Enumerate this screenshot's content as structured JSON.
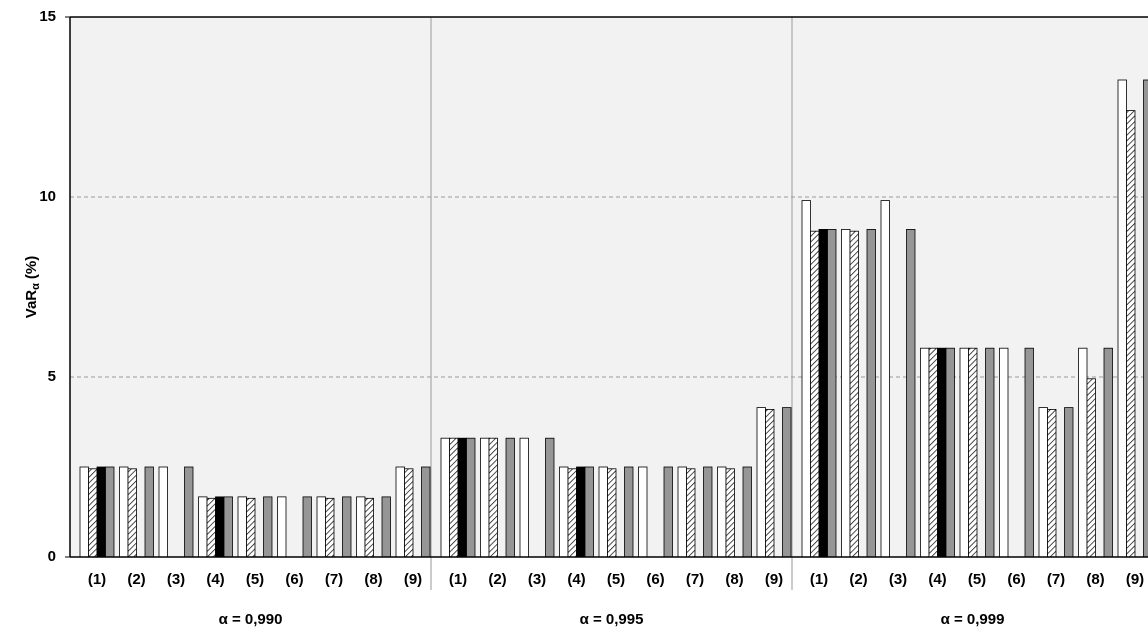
{
  "chart_data": {
    "type": "grouped-bar",
    "y_label": {
      "main": "VaR",
      "sub": "α",
      "unit": "(%)"
    },
    "groups": [
      "α = 0,990",
      "α = 0,995",
      "α = 0,999"
    ],
    "categories": [
      "(1)",
      "(2)",
      "(3)",
      "(4)",
      "(5)",
      "(6)",
      "(7)",
      "(8)",
      "(9)",
      "(1)",
      "(2)",
      "(3)",
      "(4)",
      "(5)",
      "(6)",
      "(7)",
      "(8)",
      "(9)",
      "(1)",
      "(2)",
      "(3)",
      "(4)",
      "(5)",
      "(6)",
      "(7)",
      "(8)",
      "(9)"
    ],
    "series": [
      {
        "color": "#ffffff",
        "values": [
          2.5,
          2.5,
          2.5,
          1.67,
          1.67,
          1.67,
          1.67,
          1.67,
          2.5,
          3.3,
          3.3,
          3.3,
          2.5,
          2.5,
          2.5,
          2.5,
          2.5,
          4.15,
          9.9,
          9.1,
          9.9,
          5.8,
          5.8,
          5.8,
          4.15,
          5.8,
          13.25
        ]
      },
      {
        "color": "hatch",
        "values": [
          2.45,
          2.45,
          null,
          1.63,
          1.63,
          null,
          1.63,
          1.63,
          2.45,
          3.3,
          3.3,
          null,
          2.45,
          2.45,
          null,
          2.45,
          2.45,
          4.1,
          9.05,
          9.05,
          null,
          5.8,
          5.8,
          null,
          4.1,
          4.95,
          12.4
        ]
      },
      {
        "color": "#000000",
        "values": [
          2.5,
          null,
          null,
          1.67,
          null,
          null,
          null,
          null,
          null,
          3.3,
          null,
          null,
          2.5,
          null,
          null,
          null,
          null,
          null,
          9.1,
          null,
          null,
          5.8,
          null,
          null,
          null,
          null,
          null
        ]
      },
      {
        "color": "#969696",
        "values": [
          2.5,
          2.5,
          2.5,
          1.67,
          1.67,
          1.67,
          1.67,
          1.67,
          2.5,
          3.3,
          3.3,
          3.3,
          2.5,
          2.5,
          2.5,
          2.5,
          2.5,
          4.15,
          9.1,
          9.1,
          9.1,
          5.8,
          5.8,
          5.8,
          4.15,
          5.8,
          13.25
        ]
      }
    ],
    "ylim": [
      0,
      15
    ],
    "yticks": [
      0,
      5,
      10,
      15
    ],
    "grid": true
  }
}
